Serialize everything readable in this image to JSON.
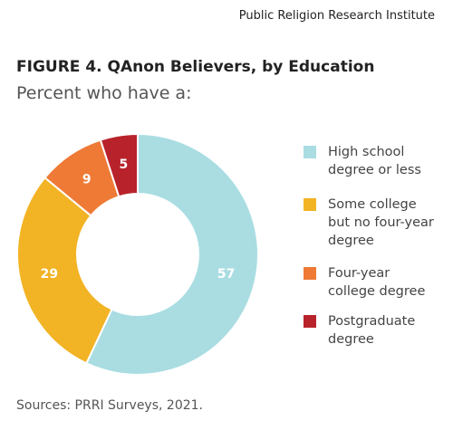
{
  "source_org": "Public Religion Research Institute",
  "chart_data": {
    "type": "donut",
    "title": "FIGURE 4.  QAnon Believers, by Education",
    "subtitle": "Percent who have a:",
    "categories": [
      "High school degree or less",
      "Some college but no four-year degree",
      "Four-year college degree",
      "Postgraduate degree"
    ],
    "values": [
      57,
      29,
      9,
      5
    ],
    "colors": [
      "#a9dde2",
      "#f2b324",
      "#ee7a36",
      "#b8232b"
    ],
    "legend": "right",
    "note": "Sources: PRRI Surveys, 2021."
  }
}
